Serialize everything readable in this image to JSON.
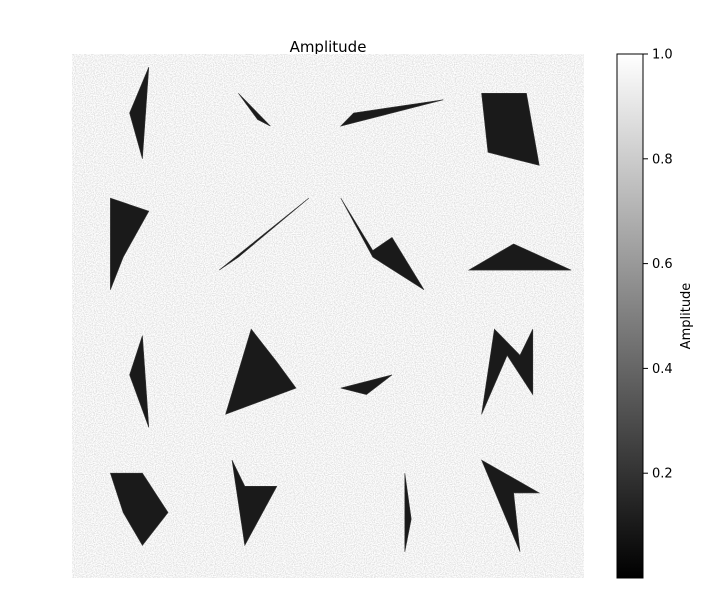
{
  "chart_data": {
    "type": "heatmap",
    "title": "Amplitude",
    "colormap": "gray",
    "colorbar": {
      "label": "Amplitude",
      "vmin": 0.0,
      "vmax": 1.0,
      "ticks": [
        0.2,
        0.4,
        0.6,
        0.8,
        1.0
      ],
      "tick_labels": [
        "0.2",
        "0.4",
        "0.6",
        "0.8",
        "1.0"
      ]
    },
    "axes_visible": false,
    "background_amplitude": 1.0,
    "shape_amplitude": 0.1,
    "grid": {
      "rows": 4,
      "cols": 4
    },
    "shapes": [
      {
        "cell": [
          0,
          0
        ],
        "tri": [
          [
            [
              0.45,
              0.45
            ],
            [
              0.6,
              0.1
            ],
            [
              0.55,
              0.8
            ]
          ]
        ]
      },
      {
        "cell": [
          0,
          1
        ],
        "tri": [
          [
            [
              0.3,
              0.3
            ],
            [
              0.55,
              0.55
            ],
            [
              0.45,
              0.5
            ]
          ]
        ]
      },
      {
        "cell": [
          0,
          2
        ],
        "tri": [
          [
            [
              0.1,
              0.55
            ],
            [
              0.9,
              0.35
            ],
            [
              0.2,
              0.45
            ]
          ]
        ]
      },
      {
        "cell": [
          0,
          3
        ],
        "tri": [
          [
            [
              0.2,
              0.3
            ],
            [
              0.55,
              0.3
            ],
            [
              0.65,
              0.85
            ],
            [
              0.25,
              0.75
            ]
          ]
        ]
      },
      {
        "cell": [
          1,
          0
        ],
        "tri": [
          [
            [
              0.3,
              0.1
            ],
            [
              0.6,
              0.2
            ],
            [
              0.4,
              0.55
            ],
            [
              0.3,
              0.8
            ]
          ]
        ]
      },
      {
        "cell": [
          1,
          1
        ],
        "tri": [
          [
            [
              0.15,
              0.65
            ],
            [
              0.85,
              0.1
            ],
            [
              0.3,
              0.55
            ]
          ]
        ]
      },
      {
        "cell": [
          1,
          2
        ],
        "tri": [
          [
            [
              0.1,
              0.1
            ],
            [
              0.35,
              0.55
            ],
            [
              0.75,
              0.8
            ],
            [
              0.5,
              0.4
            ],
            [
              0.35,
              0.5
            ]
          ]
        ]
      },
      {
        "cell": [
          1,
          3
        ],
        "tri": [
          [
            [
              0.1,
              0.65
            ],
            [
              0.45,
              0.45
            ],
            [
              0.9,
              0.65
            ]
          ]
        ]
      }
    ]
  }
}
